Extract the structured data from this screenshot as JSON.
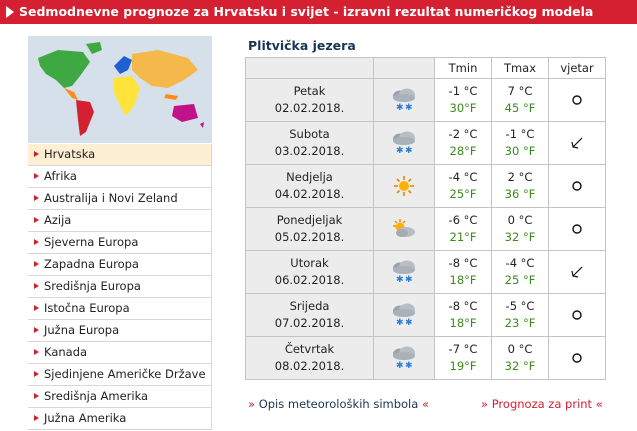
{
  "header": {
    "title": "Sedmodnevne prognoze za Hrvatsku i svijet - izravni rezultat numeričkog modela"
  },
  "sidebar": {
    "items": [
      {
        "label": "Hrvatska",
        "active": true
      },
      {
        "label": "Afrika"
      },
      {
        "label": "Australija i Novi Zeland"
      },
      {
        "label": "Azija"
      },
      {
        "label": "Sjeverna Europa"
      },
      {
        "label": "Zapadna Europa"
      },
      {
        "label": "Središnja Europa"
      },
      {
        "label": "Istočna Europa"
      },
      {
        "label": "Južna Europa"
      },
      {
        "label": "Kanada"
      },
      {
        "label": "Sjedinjene Američke Države"
      },
      {
        "label": "Središnja Amerika"
      },
      {
        "label": "Južna Amerika"
      }
    ]
  },
  "location": "Plitvička jezera",
  "table": {
    "headers": {
      "tmin": "Tmin",
      "tmax": "Tmax",
      "wind": "vjetar"
    },
    "rows": [
      {
        "day": "Petak",
        "date": "02.02.2018.",
        "icon": "snow-cloud-icon",
        "tmin_c": "-1 °C",
        "tmin_f": "30°F",
        "tmax_c": "7 °C",
        "tmax_f": "45 °F",
        "wind": "calm"
      },
      {
        "day": "Subota",
        "date": "03.02.2018.",
        "icon": "snow-cloud-icon",
        "tmin_c": "-2 °C",
        "tmin_f": "28°F",
        "tmax_c": "-1 °C",
        "tmax_f": "30 °F",
        "wind": "northeast"
      },
      {
        "day": "Nedjelja",
        "date": "04.02.2018.",
        "icon": "sun-icon",
        "tmin_c": "-4 °C",
        "tmin_f": "25°F",
        "tmax_c": "2 °C",
        "tmax_f": "36 °F",
        "wind": "calm"
      },
      {
        "day": "Ponedjeljak",
        "date": "05.02.2018.",
        "icon": "partly-cloudy-icon",
        "tmin_c": "-6 °C",
        "tmin_f": "21°F",
        "tmax_c": "0 °C",
        "tmax_f": "32 °F",
        "wind": "calm"
      },
      {
        "day": "Utorak",
        "date": "06.02.2018.",
        "icon": "snow-cloud-icon",
        "tmin_c": "-8 °C",
        "tmin_f": "18°F",
        "tmax_c": "-4 °C",
        "tmax_f": "25 °F",
        "wind": "northeast"
      },
      {
        "day": "Srijeda",
        "date": "07.02.2018.",
        "icon": "snow-cloud-icon",
        "tmin_c": "-8 °C",
        "tmin_f": "18°F",
        "tmax_c": "-5 °C",
        "tmax_f": "23 °F",
        "wind": "calm"
      },
      {
        "day": "Četvrtak",
        "date": "08.02.2018.",
        "icon": "snow-cloud-icon",
        "tmin_c": "-7 °C",
        "tmin_f": "19°F",
        "tmax_c": "0 °C",
        "tmax_f": "32 °F",
        "wind": "calm"
      }
    ]
  },
  "links": {
    "symbols_prefix": "» ",
    "symbols": "Opis meteoroloških simbola",
    "symbols_suffix": " «",
    "print_prefix": "» ",
    "print": "Prognoza za print",
    "print_suffix": " «"
  },
  "colors": {
    "header_bg": "#d42030",
    "fahrenheit": "#3b8a1c",
    "active_item": "#fcefd4"
  }
}
